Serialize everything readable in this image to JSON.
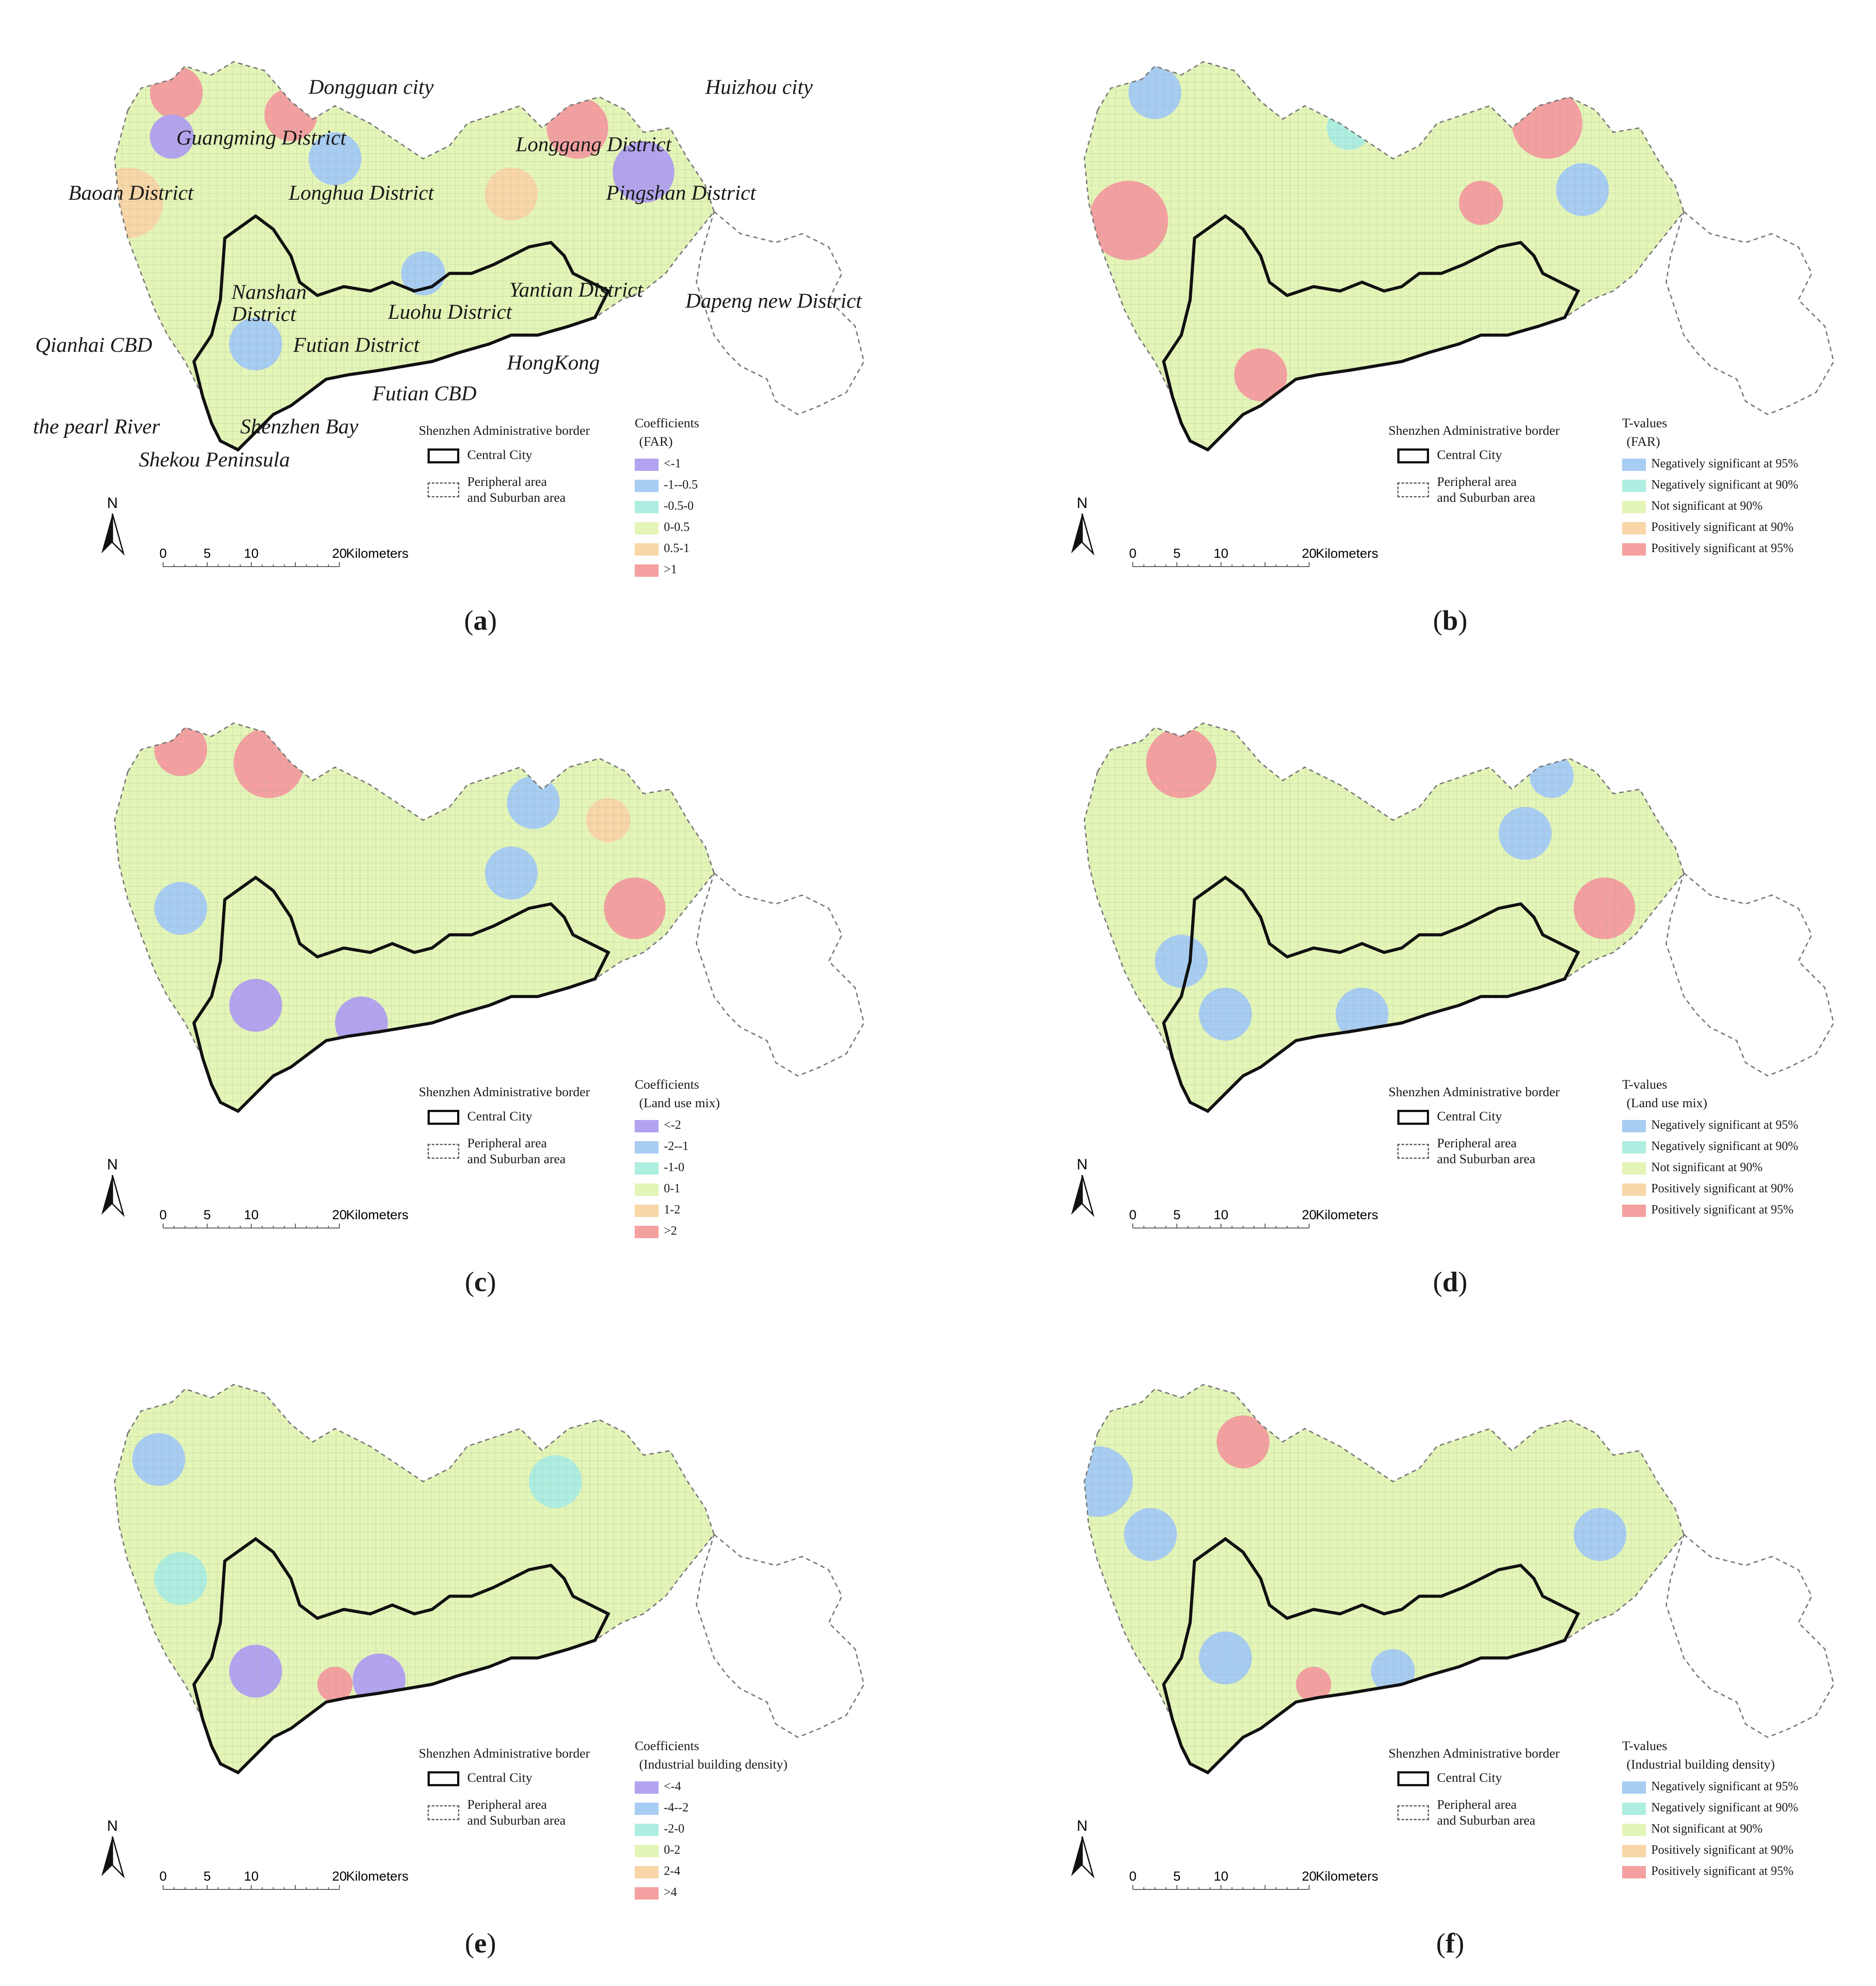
{
  "common": {
    "border_title": "Shenzhen Administrative border",
    "central_city": "Central City",
    "peripheral_line1": "Peripheral area",
    "peripheral_line2": "and Suburban area",
    "north": "N",
    "scale_labels": [
      "0",
      "5",
      "10",
      "20"
    ],
    "scale_unit": "Kilometers",
    "tvalue_classes": [
      {
        "label": "Negatively significant at 95%",
        "color": "#a8cdf2"
      },
      {
        "label": "Negatively significant at 90%",
        "color": "#aeeee0"
      },
      {
        "label": "Not significant at 90%",
        "color": "#e4f5b8"
      },
      {
        "label": "Positively significant at 90%",
        "color": "#f8d6a8"
      },
      {
        "label": "Positively significant at 95%",
        "color": "#f4a0a0"
      }
    ],
    "class_colors": [
      "#b3a3ef",
      "#a8cdf2",
      "#aeeee0",
      "#e4f5b8",
      "#f8d6a8",
      "#f4a0a0"
    ]
  },
  "panels": [
    {
      "id": "a",
      "caption": "a",
      "legend_title_1": "Coefficients",
      "legend_title_2": "(FAR)",
      "classes": [
        "<-1",
        "-1--0.5",
        "-0.5-0",
        "0-0.5",
        "0.5-1",
        ">1"
      ]
    },
    {
      "id": "b",
      "caption": "b",
      "legend_title_1": "T-values",
      "legend_title_2": "(FAR)",
      "classes": [
        "Negatively significant at 95%",
        "Negatively significant at 90%",
        "Not significant at 90%",
        "Positively significant at 90%",
        "Positively significant at 95%"
      ]
    },
    {
      "id": "c",
      "caption": "c",
      "legend_title_1": "Coefficients",
      "legend_title_2": "(Land use mix)",
      "classes": [
        "<-2",
        "-2--1",
        "-1-0",
        "0-1",
        "1-2",
        ">2"
      ]
    },
    {
      "id": "d",
      "caption": "d",
      "legend_title_1": "T-values",
      "legend_title_2": "(Land use mix)",
      "classes": [
        "Negatively significant at 95%",
        "Negatively significant at 90%",
        "Not significant at 90%",
        "Positively significant at 90%",
        "Positively significant at 95%"
      ]
    },
    {
      "id": "e",
      "caption": "e",
      "legend_title_1": "Coefficients",
      "legend_title_2": "(Industrial building density)",
      "classes": [
        "<-4",
        "-4--2",
        "-2-0",
        "0-2",
        "2-4",
        ">4"
      ]
    },
    {
      "id": "f",
      "caption": "f",
      "legend_title_1": "T-values",
      "legend_title_2": "(Industrial building density)",
      "classes": [
        "Negatively significant at 95%",
        "Negatively significant at 90%",
        "Not significant at 90%",
        "Positively significant at 90%",
        "Positively significant at 95%"
      ]
    }
  ],
  "place_labels": {
    "dongguan": "Dongguan city",
    "huizhou": "Huizhou city",
    "guangming": "Guangming District",
    "longgang": "Longgang District",
    "baoan": "Baoan District",
    "longhua": "Longhua District",
    "pingshan": "Pingshan District",
    "nanshan1": "Nanshan",
    "nanshan2": "District",
    "yantian": "Yantian District",
    "luohu": "Luohu District",
    "dapeng": "Dapeng new District",
    "qianhai": "Qianhai CBD",
    "futian": "Futian District",
    "hongkong": "HongKong",
    "futian_cbd": "Futian CBD",
    "pearl": "the pearl River",
    "shenzhen_bay": "Shenzhen Bay",
    "shekou": "Shekou Peninsula"
  }
}
